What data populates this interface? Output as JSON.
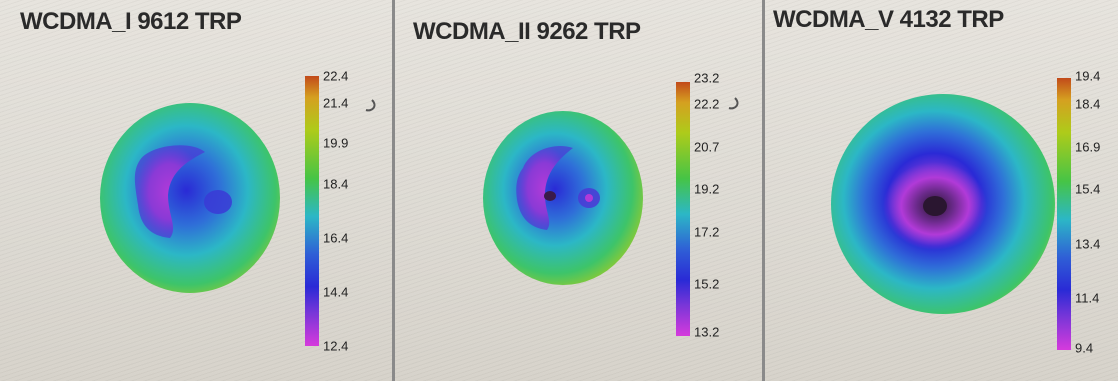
{
  "panels": [
    {
      "title": "WCDMA_I 9612 TRP",
      "colorbar": {
        "max": 22.4,
        "min": 12.4,
        "ticks": [
          "22.4",
          "21.4",
          "19.9",
          "18.4",
          "16.4",
          "14.4",
          "12.4"
        ]
      }
    },
    {
      "title": "WCDMA_II 9262 TRP",
      "colorbar": {
        "max": 23.2,
        "min": 13.2,
        "ticks": [
          "23.2",
          "22.2",
          "20.7",
          "19.2",
          "17.2",
          "15.2",
          "13.2"
        ]
      }
    },
    {
      "title": "WCDMA_V 4132 TRP",
      "colorbar": {
        "max": 19.4,
        "min": 9.4,
        "ticks": [
          "19.4",
          "18.4",
          "16.9",
          "15.4",
          "13.4",
          "11.4",
          "9.4"
        ]
      }
    }
  ],
  "colors": {
    "high": "#c24a1a",
    "upper": "#aecb1a",
    "mid": "#46c446",
    "cyan": "#2cb7c6",
    "blue": "#2a2ad6",
    "low": "#d63adc"
  }
}
